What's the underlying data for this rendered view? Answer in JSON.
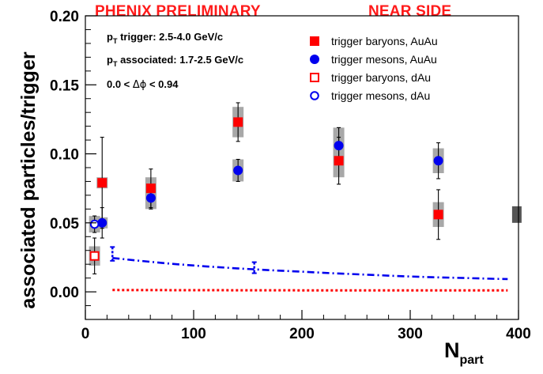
{
  "header": {
    "title_left": "PHENIX PRELIMINARY",
    "title_right": "NEAR SIDE",
    "title_color": "#ff1a1a"
  },
  "annotations": {
    "line1": {
      "pre": "p",
      "sub": "T",
      "post": " trigger: 2.5-4.0 GeV/c"
    },
    "line2": {
      "pre": "p",
      "sub": "T",
      "post": " associated: 1.7-2.5 GeV/c"
    },
    "line3": {
      "pre": "0.0 < ",
      "sym": "Δϕ",
      "post": " < 0.94"
    }
  },
  "chart_data": {
    "type": "scatter",
    "xlabel": {
      "main": "N",
      "sub": "part"
    },
    "ylabel": "associated particles/trigger",
    "xlim": [
      0,
      400
    ],
    "ylim": [
      -0.02,
      0.2
    ],
    "xticks": [
      "0",
      "100",
      "200",
      "300",
      "400"
    ],
    "yticks": [
      "0.00",
      "0.05",
      "0.10",
      "0.15",
      "0.20"
    ],
    "legend_position": "top-right",
    "colors": {
      "red": "#ff0000",
      "blue": "#0000ee",
      "sysband": "#a8a8a8",
      "norm_box": "#555555"
    },
    "series": [
      {
        "name": "trigger baryons, AuAu",
        "marker": "filled-square",
        "color": "#ff0000",
        "points": [
          {
            "x": 15.5,
            "y": 0.079,
            "err": 0.033,
            "sys": 0.004
          },
          {
            "x": 60.5,
            "y": 0.075,
            "err": 0.014,
            "sys": 0.008
          },
          {
            "x": 141,
            "y": 0.123,
            "err": 0.014,
            "sys": 0.011
          },
          {
            "x": 234,
            "y": 0.095,
            "err": 0.017,
            "sys": 0.012
          },
          {
            "x": 326,
            "y": 0.056,
            "err": 0.018,
            "sys": 0.009
          }
        ]
      },
      {
        "name": "trigger mesons, AuAu",
        "marker": "filled-circle",
        "color": "#0000ee",
        "points": [
          {
            "x": 15.5,
            "y": 0.05,
            "err": 0.011,
            "sys": 0.004
          },
          {
            "x": 60.5,
            "y": 0.068,
            "err": 0.008,
            "sys": 0.008
          },
          {
            "x": 141,
            "y": 0.088,
            "err": 0.008,
            "sys": 0.008
          },
          {
            "x": 234,
            "y": 0.106,
            "err": 0.013,
            "sys": 0.013
          },
          {
            "x": 326,
            "y": 0.095,
            "err": 0.013,
            "sys": 0.009
          }
        ]
      },
      {
        "name": "trigger baryons, dAu",
        "marker": "open-square",
        "color": "#ff0000",
        "points": [
          {
            "x": 8.5,
            "y": 0.026,
            "err": 0.013,
            "sys": 0.007
          }
        ]
      },
      {
        "name": "trigger mesons, dAu",
        "marker": "open-circle",
        "color": "#0000ee",
        "points": [
          {
            "x": 8.5,
            "y": 0.049,
            "err": 0.006,
            "sys": 0.006
          }
        ]
      }
    ],
    "curves": [
      {
        "style": "blue-dashdot",
        "color": "#0000ee",
        "x": [
          25,
          50,
          80,
          110,
          140,
          170,
          200,
          230,
          260,
          290,
          320,
          350,
          380,
          390
        ],
        "y": [
          0.0245,
          0.0225,
          0.0203,
          0.0185,
          0.017,
          0.0157,
          0.0146,
          0.0134,
          0.0124,
          0.0114,
          0.0106,
          0.01,
          0.0094,
          0.0093
        ]
      },
      {
        "style": "red-dotted",
        "color": "#ff0000",
        "x": [
          25,
          100,
          200,
          300,
          390
        ],
        "y": [
          0.0013,
          0.0012,
          0.0011,
          0.001,
          0.001
        ]
      }
    ],
    "curve_marks": [
      {
        "x": 25,
        "y": 0.0275,
        "err": 0.005
      },
      {
        "x": 156,
        "y": 0.0175,
        "err": 0.004
      }
    ],
    "norm_box": {
      "x": 397,
      "y": 0.056,
      "half_height": 0.006
    }
  }
}
